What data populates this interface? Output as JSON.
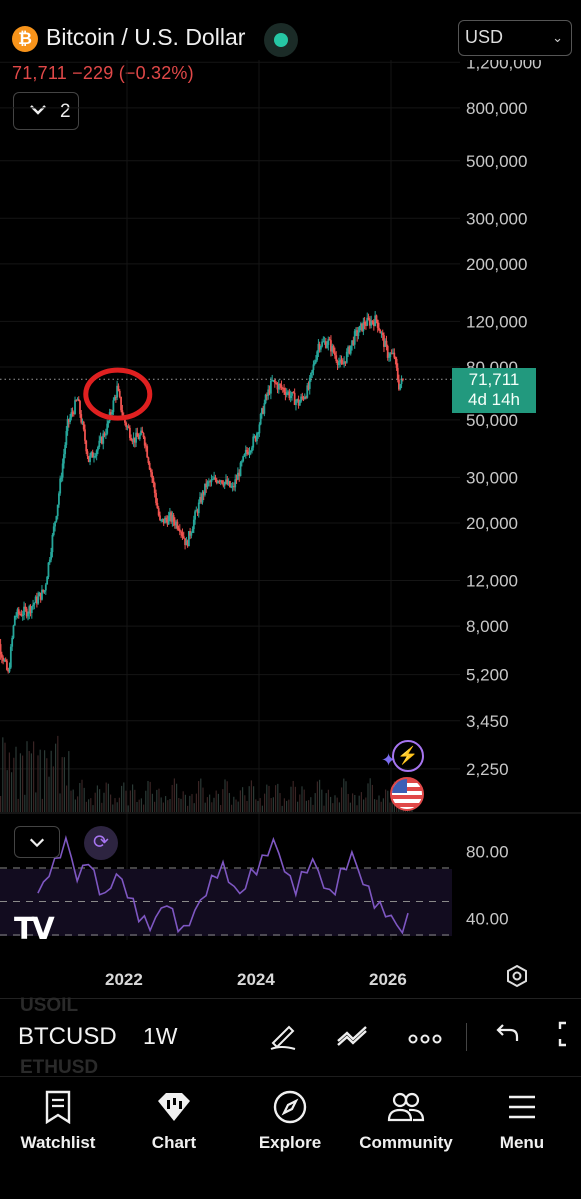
{
  "header": {
    "symbol_icon": "bitcoin-icon",
    "title": "Bitcoin / U.S. Dollar",
    "market_status_color": "#26c6a4",
    "currency": "USD",
    "last_price": "71,711",
    "change": "−229",
    "change_pct": "(−0.32%)",
    "indicator_count": "2"
  },
  "last_badge": {
    "price": "71,711",
    "countdown": "4d 14h"
  },
  "chart_data": {
    "type": "candlestick",
    "scale": "log",
    "y_tick_labels": [
      "1,200,000",
      "800,000",
      "500,000",
      "300,000",
      "200,000",
      "120,000",
      "80,000",
      "50,000",
      "30,000",
      "20,000",
      "12,000",
      "8,000",
      "5,200",
      "3,450",
      "2,250"
    ],
    "x_tick_labels": [
      "2022",
      "2024",
      "2026"
    ],
    "price_path": [
      {
        "x": "2020.50",
        "y": 9200
      },
      {
        "x": "2020.75",
        "y": 11000
      },
      {
        "x": "2020.95",
        "y": 24000
      },
      {
        "x": "2021.10",
        "y": 48000
      },
      {
        "x": "2021.25",
        "y": 60000
      },
      {
        "x": "2021.42",
        "y": 35000
      },
      {
        "x": "2021.58",
        "y": 40000
      },
      {
        "x": "2021.70",
        "y": 47000
      },
      {
        "x": "2021.85",
        "y": 66000
      },
      {
        "x": "2021.95",
        "y": 50000
      },
      {
        "x": "2022.10",
        "y": 42000
      },
      {
        "x": "2022.25",
        "y": 44000
      },
      {
        "x": "2022.38",
        "y": 30000
      },
      {
        "x": "2022.50",
        "y": 20000
      },
      {
        "x": "2022.65",
        "y": 21000
      },
      {
        "x": "2022.80",
        "y": 19500
      },
      {
        "x": "2022.90",
        "y": 16500
      },
      {
        "x": "2023.05",
        "y": 22000
      },
      {
        "x": "2023.20",
        "y": 28000
      },
      {
        "x": "2023.40",
        "y": 30000
      },
      {
        "x": "2023.60",
        "y": 27000
      },
      {
        "x": "2023.80",
        "y": 37000
      },
      {
        "x": "2023.95",
        "y": 43000
      },
      {
        "x": "2024.10",
        "y": 60000
      },
      {
        "x": "2024.20",
        "y": 70000
      },
      {
        "x": "2024.40",
        "y": 65000
      },
      {
        "x": "2024.60",
        "y": 58000
      },
      {
        "x": "2024.75",
        "y": 66000
      },
      {
        "x": "2024.90",
        "y": 98000
      },
      {
        "x": "2025.05",
        "y": 100000
      },
      {
        "x": "2025.25",
        "y": 80000
      },
      {
        "x": "2025.45",
        "y": 105000
      },
      {
        "x": "2025.60",
        "y": 118000
      },
      {
        "x": "2025.78",
        "y": 122000
      },
      {
        "x": "2025.95",
        "y": 90000
      },
      {
        "x": "2026.05",
        "y": 88000
      },
      {
        "x": "2026.12",
        "y": 68000
      },
      {
        "x": "2026.20",
        "y": 71711
      }
    ],
    "last_price": 71711,
    "annotation": "red circle around 2021 peak",
    "grid": true,
    "rsi": {
      "levels": [
        "80.00",
        "40.00"
      ],
      "guides": [
        70,
        50,
        30
      ],
      "line_color": "#7e57c2",
      "values": [
        55,
        60,
        68,
        72,
        80,
        85,
        78,
        62,
        70,
        75,
        65,
        58,
        52,
        60,
        66,
        62,
        55,
        48,
        42,
        38,
        35,
        40,
        45,
        50,
        42,
        36,
        32,
        38,
        44,
        50,
        56,
        62,
        68,
        70,
        64,
        58,
        54,
        60,
        66,
        70,
        74,
        80,
        86,
        78,
        70,
        62,
        58,
        64,
        70,
        74,
        68,
        60,
        54,
        58,
        66,
        72,
        78,
        70,
        62,
        56,
        50,
        46,
        44,
        40,
        36,
        33,
        40
      ]
    }
  },
  "icons": {
    "alert": "lightning-icon",
    "sparkle": "sparkle-icon",
    "economic_events": "us-flag-icon",
    "rsi_collapse": "chevron-down-icon",
    "rsi_sync": "refresh-icon",
    "logo": "tradingview-logo",
    "settings": "settings-icon"
  },
  "symbol_bar": {
    "ghost_above": "USOIL",
    "ghost_below": "ETHUSD",
    "symbol": "BTCUSD",
    "timeframe": "1W"
  },
  "nav": {
    "items": [
      {
        "label": "Watchlist",
        "icon": "bookmark-icon"
      },
      {
        "label": "Chart",
        "icon": "chart-icon"
      },
      {
        "label": "Explore",
        "icon": "compass-icon"
      },
      {
        "label": "Community",
        "icon": "people-icon"
      },
      {
        "label": "Menu",
        "icon": "hamburger-icon"
      }
    ]
  }
}
